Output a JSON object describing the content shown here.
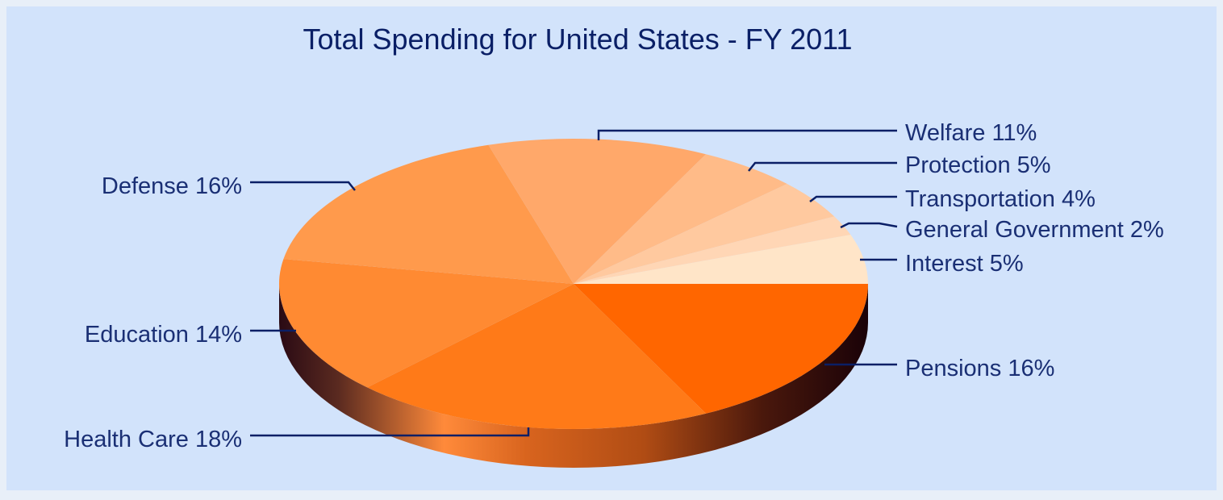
{
  "chart_data": {
    "type": "pie",
    "title": "Total Spending for United States - FY 2011",
    "slices": [
      {
        "label": "Pensions",
        "value": 16,
        "display": "Pensions 16%",
        "color": "#ff6600"
      },
      {
        "label": "Health Care",
        "value": 18,
        "display": "Health Care 18%",
        "color": "#ff7a18"
      },
      {
        "label": "Education",
        "value": 14,
        "display": "Education 14%",
        "color": "#ff8a32"
      },
      {
        "label": "Defense",
        "value": 16,
        "display": "Defense 16%",
        "color": "#ff9a4c"
      },
      {
        "label": "Welfare",
        "value": 11,
        "display": "Welfare 11%",
        "color": "#ffa86a"
      },
      {
        "label": "Protection",
        "value": 5,
        "display": "Protection 5%",
        "color": "#ffbb88"
      },
      {
        "label": "Transportation",
        "value": 4,
        "display": "Transportation 4%",
        "color": "#ffc99f"
      },
      {
        "label": "General Government",
        "value": 2,
        "display": "General Government 2%",
        "color": "#ffd6b5"
      },
      {
        "label": "Interest",
        "value": 5,
        "display": "Interest 5%",
        "color": "#ffe5c8"
      }
    ],
    "style": "3d-pie",
    "legend": "none"
  }
}
